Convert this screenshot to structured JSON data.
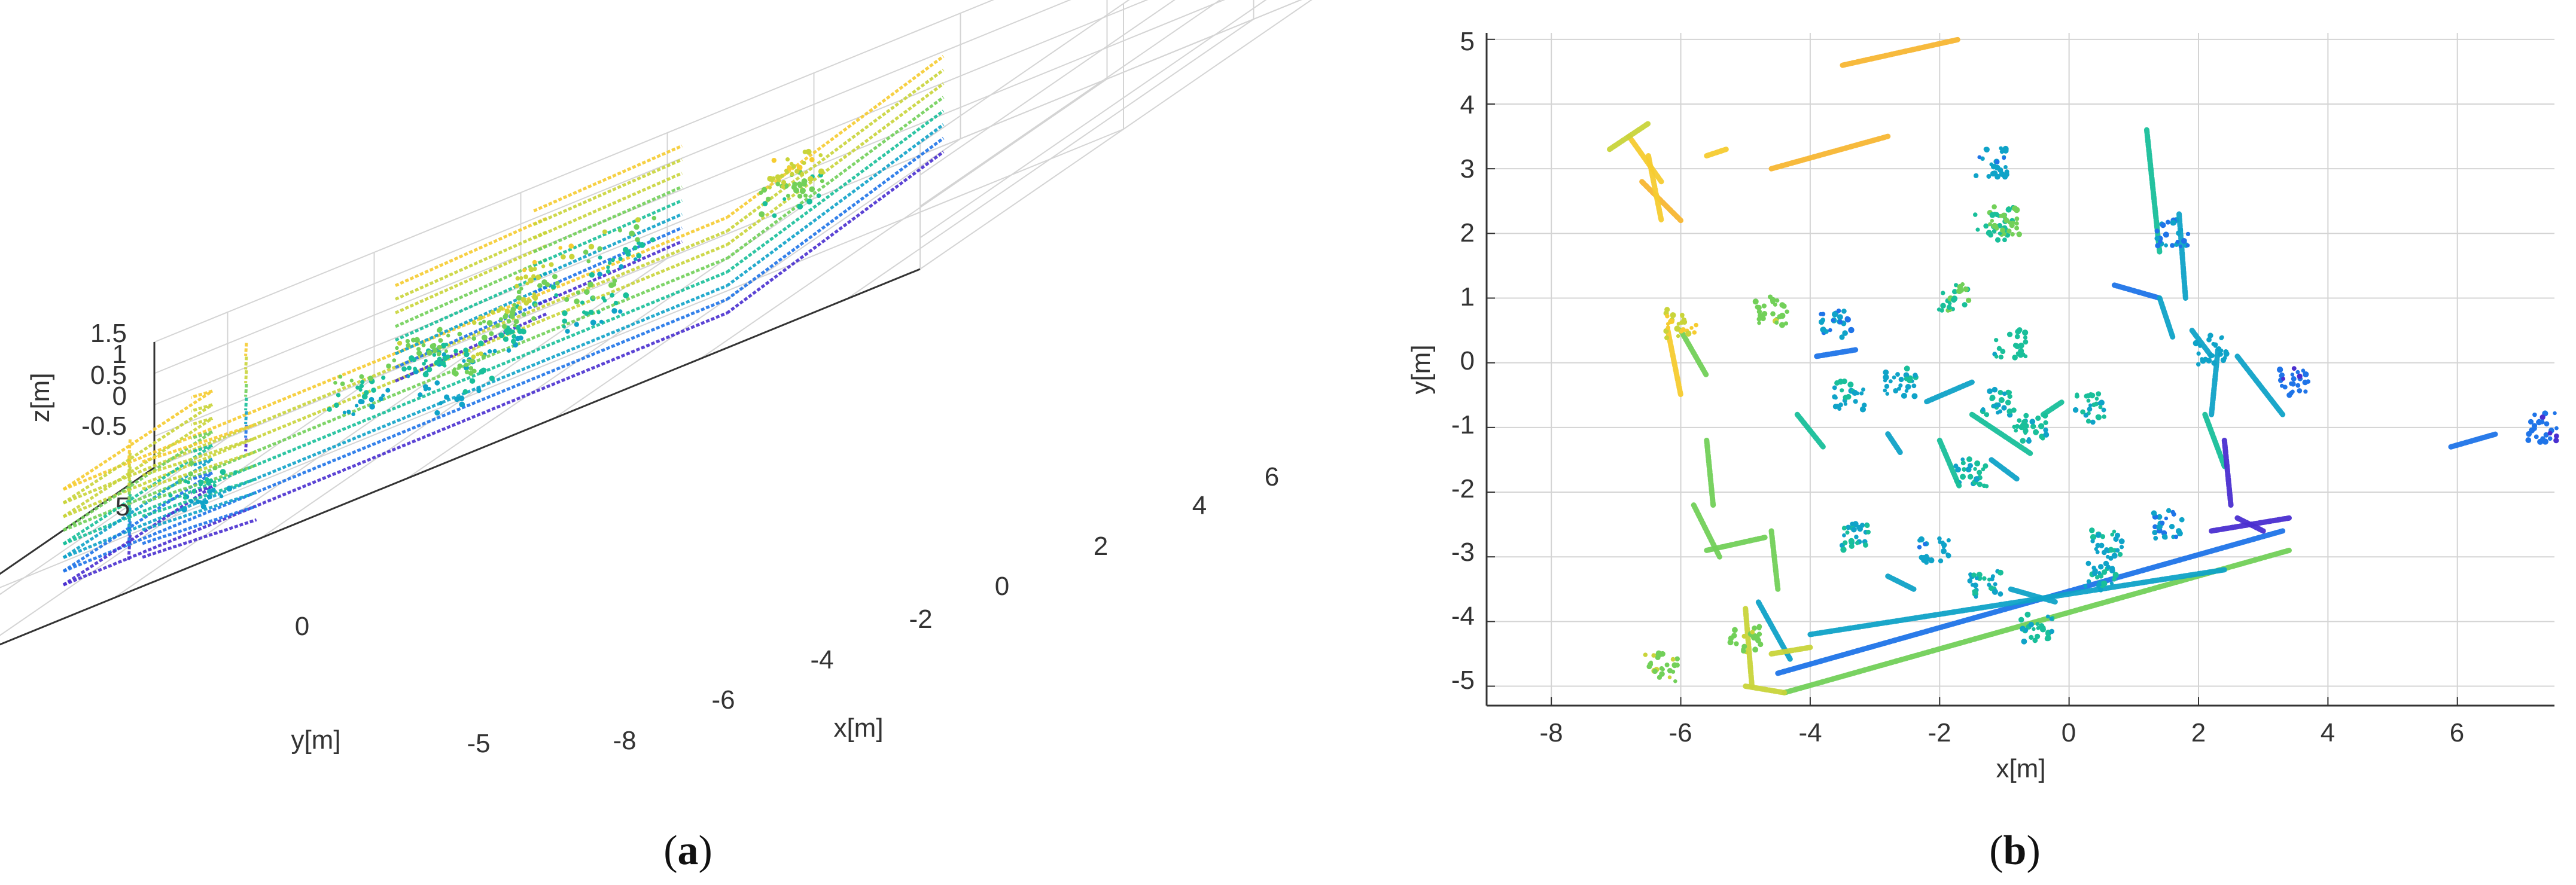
{
  "colors": {
    "grid": "#d4d4d4",
    "axis": "#333333",
    "colormap": [
      "#4a2fd0",
      "#1f74e8",
      "#0fa3c8",
      "#19bf9a",
      "#72d059",
      "#c9d43a",
      "#f6cc30",
      "#f7b733"
    ]
  },
  "chart_data": [
    {
      "type": "scatter",
      "panel_label": "(a)",
      "panel_letter": "a",
      "projection": "3d",
      "xlabel": "x[m]",
      "ylabel": "y[m]",
      "zlabel": "z[m]",
      "xlim": [
        -9,
        7
      ],
      "ylim": [
        -5,
        5
      ],
      "zlim": [
        -0.8,
        1.5
      ],
      "x_ticks": [
        "-8",
        "-6",
        "-4",
        "-2",
        "0",
        "2",
        "4",
        "6"
      ],
      "y_ticks": [
        "5",
        "0",
        "-5"
      ],
      "z_ticks": [
        "1.5",
        "1",
        "0.5",
        "0",
        "-0.5"
      ],
      "grid": true,
      "color_by": "z",
      "segments_3d": [
        [
          -5.8,
          -3.0,
          3.2,
          -2.9
        ],
        [
          -5.8,
          -3.0,
          -5.6,
          0.3
        ],
        [
          -5.6,
          0.3,
          -6.0,
          0.5
        ],
        [
          3.2,
          -2.9,
          2.6,
          3.5
        ],
        [
          -6.8,
          3.3,
          -6.2,
          2.2
        ],
        [
          -4.6,
          3.0,
          -2.8,
          3.5
        ],
        [
          -3.6,
          4.6,
          -1.8,
          5.0
        ],
        [
          -6.0,
          -1.0,
          -4.8,
          -3.2
        ],
        [
          -4.5,
          -3.4,
          -2.5,
          -4.2
        ]
      ],
      "clusters_3d": [
        [
          -1.0,
          2.0,
          0.4
        ],
        [
          -1.5,
          1.0,
          0.6
        ],
        [
          -2.6,
          0.2,
          0.3
        ],
        [
          -1.2,
          -0.6,
          0.3
        ],
        [
          -1.9,
          -0.8,
          0.2
        ],
        [
          -0.8,
          -1.0,
          0.4
        ],
        [
          0.5,
          -1.3,
          0.2
        ],
        [
          -3.2,
          -0.4,
          0.2
        ],
        [
          1.8,
          1.2,
          0.6
        ],
        [
          2.5,
          0.0,
          0.6
        ],
        [
          -4.0,
          -2.8,
          0.2
        ],
        [
          0.0,
          -3.6,
          0.3
        ]
      ]
    },
    {
      "type": "scatter",
      "panel_label": "(b)",
      "panel_letter": "b",
      "projection": "top view",
      "xlabel": "x[m]",
      "ylabel": "y[m]",
      "xlim": [
        -9,
        7.5
      ],
      "ylim": [
        -5.3,
        5.1
      ],
      "x_ticks": [
        "-8",
        "-6",
        "-4",
        "-2",
        "0",
        "2",
        "4",
        "6"
      ],
      "y_ticks": [
        "5",
        "4",
        "3",
        "2",
        "1",
        "0",
        "-1",
        "-2",
        "-3",
        "-4",
        "-5"
      ],
      "grid": true,
      "color_by": "z",
      "segments": [
        {
          "x": [
            -4.4,
            3.4
          ],
          "y": [
            -5.1,
            -2.9
          ],
          "z": 0.5
        },
        {
          "x": [
            -4.5,
            3.3
          ],
          "y": [
            -4.8,
            -2.6
          ],
          "z": -0.3
        },
        {
          "x": [
            -4.0,
            2.4
          ],
          "y": [
            -4.2,
            -3.2
          ],
          "z": -0.1
        },
        {
          "x": [
            2.2,
            3.4
          ],
          "y": [
            -2.6,
            -2.4
          ],
          "z": -0.6
        },
        {
          "x": [
            -6.2,
            -6.0
          ],
          "y": [
            0.5,
            -0.5
          ],
          "z": 1.0
        },
        {
          "x": [
            -6.0,
            -5.6
          ],
          "y": [
            0.5,
            -0.2
          ],
          "z": 0.5
        },
        {
          "x": [
            -5.6,
            -5.5
          ],
          "y": [
            -1.2,
            -2.2
          ],
          "z": 0.5
        },
        {
          "x": [
            -5.8,
            -5.4
          ],
          "y": [
            -2.2,
            -3.0
          ],
          "z": 0.6
        },
        {
          "x": [
            -5.6,
            -4.7
          ],
          "y": [
            -2.9,
            -2.7
          ],
          "z": 0.4
        },
        {
          "x": [
            -4.6,
            -4.5
          ],
          "y": [
            -2.6,
            -3.5
          ],
          "z": 0.6
        },
        {
          "x": [
            -5.0,
            -4.9
          ],
          "y": [
            -3.8,
            -5.0
          ],
          "z": 0.9
        },
        {
          "x": [
            -4.8,
            -4.3
          ],
          "y": [
            -3.7,
            -4.6
          ],
          "z": -0.1
        },
        {
          "x": [
            -4.6,
            -4.0
          ],
          "y": [
            -4.5,
            -4.4
          ],
          "z": 0.8
        },
        {
          "x": [
            -5.0,
            -4.4
          ],
          "y": [
            -5.0,
            -5.1
          ],
          "z": 0.9
        },
        {
          "x": [
            1.2,
            1.4
          ],
          "y": [
            3.6,
            1.7
          ],
          "z": 0.3
        },
        {
          "x": [
            1.7,
            1.8
          ],
          "y": [
            2.3,
            1.0
          ],
          "z": -0.1
        },
        {
          "x": [
            1.9,
            2.2
          ],
          "y": [
            0.5,
            0.1
          ],
          "z": 0.0
        },
        {
          "x": [
            2.3,
            2.2
          ],
          "y": [
            0.2,
            -0.8
          ],
          "z": -0.1
        },
        {
          "x": [
            2.1,
            2.4
          ],
          "y": [
            -0.8,
            -1.6
          ],
          "z": 0.1
        },
        {
          "x": [
            0.7,
            1.4
          ],
          "y": [
            1.2,
            1.0
          ],
          "z": -0.4
        },
        {
          "x": [
            1.4,
            1.6
          ],
          "y": [
            1.0,
            0.4
          ],
          "z": -0.2
        },
        {
          "x": [
            2.4,
            2.5
          ],
          "y": [
            -1.2,
            -2.2
          ],
          "z": -0.6
        },
        {
          "x": [
            2.6,
            3.0
          ],
          "y": [
            -2.4,
            -2.6
          ],
          "z": -0.6
        },
        {
          "x": [
            2.6,
            3.3
          ],
          "y": [
            0.1,
            -0.8
          ],
          "z": -0.2
        },
        {
          "x": [
            -6.8,
            -6.3
          ],
          "y": [
            3.5,
            2.8
          ],
          "z": 1.2
        },
        {
          "x": [
            -6.6,
            -6.0
          ],
          "y": [
            2.8,
            2.2
          ],
          "z": 1.3
        },
        {
          "x": [
            -6.5,
            -6.3
          ],
          "y": [
            3.2,
            2.2
          ],
          "z": 1.1
        },
        {
          "x": [
            -7.1,
            -6.5
          ],
          "y": [
            3.3,
            3.7
          ],
          "z": 0.8
        },
        {
          "x": [
            -4.6,
            -2.8
          ],
          "y": [
            3.0,
            3.5
          ],
          "z": 1.3
        },
        {
          "x": [
            -3.5,
            -1.7
          ],
          "y": [
            4.6,
            5.0
          ],
          "z": 1.4
        },
        {
          "x": [
            -5.6,
            -5.3
          ],
          "y": [
            3.2,
            3.3
          ],
          "z": 1.0
        },
        {
          "x": [
            -2.2,
            -1.5
          ],
          "y": [
            -0.6,
            -0.3
          ],
          "z": 0.0
        },
        {
          "x": [
            -1.5,
            -0.6
          ],
          "y": [
            -0.8,
            -1.4
          ],
          "z": 0.1
        },
        {
          "x": [
            -2.0,
            -1.7
          ],
          "y": [
            -1.2,
            -1.9
          ],
          "z": 0.1
        },
        {
          "x": [
            -0.4,
            -0.1
          ],
          "y": [
            -0.8,
            -0.6
          ],
          "z": 0.1
        },
        {
          "x": [
            -1.2,
            -0.8
          ],
          "y": [
            -1.5,
            -1.8
          ],
          "z": 0.0
        },
        {
          "x": [
            -0.9,
            -0.2
          ],
          "y": [
            -3.5,
            -3.7
          ],
          "z": 0.0
        },
        {
          "x": [
            -2.8,
            -2.4
          ],
          "y": [
            -3.3,
            -3.5
          ],
          "z": 0.0
        },
        {
          "x": [
            -3.9,
            -3.3
          ],
          "y": [
            0.1,
            0.2
          ],
          "z": -0.3
        },
        {
          "x": [
            5.9,
            6.6
          ],
          "y": [
            -1.3,
            -1.1
          ],
          "z": -0.4
        },
        {
          "x": [
            -2.8,
            -2.6
          ],
          "y": [
            -1.1,
            -1.4
          ],
          "z": 0.0
        },
        {
          "x": [
            -4.2,
            -3.8
          ],
          "y": [
            -0.8,
            -1.3
          ],
          "z": 0.2
        }
      ],
      "clusters": [
        {
          "x": -1.2,
          "y": 2.1,
          "z": 0.3
        },
        {
          "x": -1.0,
          "y": 2.2,
          "z": 0.4
        },
        {
          "x": -1.8,
          "y": 1.0,
          "z": 0.3
        },
        {
          "x": -0.9,
          "y": 0.3,
          "z": 0.2
        },
        {
          "x": -1.1,
          "y": -0.6,
          "z": 0.1
        },
        {
          "x": -3.6,
          "y": 0.6,
          "z": -0.2
        },
        {
          "x": -4.6,
          "y": 0.8,
          "z": 0.5
        },
        {
          "x": -3.4,
          "y": -0.5,
          "z": 0.0
        },
        {
          "x": -2.6,
          "y": -0.3,
          "z": 0.0
        },
        {
          "x": -1.5,
          "y": -1.7,
          "z": 0.1
        },
        {
          "x": -0.6,
          "y": -1.0,
          "z": 0.1
        },
        {
          "x": 0.3,
          "y": -0.7,
          "z": 0.1
        },
        {
          "x": 0.6,
          "y": -2.8,
          "z": 0.0
        },
        {
          "x": -1.3,
          "y": -3.4,
          "z": 0.0
        },
        {
          "x": -2.1,
          "y": -2.9,
          "z": -0.1
        },
        {
          "x": -3.3,
          "y": -2.7,
          "z": 0.0
        },
        {
          "x": -0.5,
          "y": -4.1,
          "z": 0.1
        },
        {
          "x": 0.5,
          "y": -3.3,
          "z": 0.0
        },
        {
          "x": 1.5,
          "y": -2.5,
          "z": -0.2
        },
        {
          "x": 1.6,
          "y": 2.0,
          "z": -0.2
        },
        {
          "x": 2.2,
          "y": 0.2,
          "z": -0.1
        },
        {
          "x": -6.0,
          "y": 0.6,
          "z": 0.9
        },
        {
          "x": -5.0,
          "y": -4.3,
          "z": 0.5
        },
        {
          "x": -6.3,
          "y": -4.7,
          "z": 0.6
        },
        {
          "x": 3.5,
          "y": -0.3,
          "z": -0.4
        },
        {
          "x": -1.2,
          "y": 3.1,
          "z": -0.1
        },
        {
          "x": 7.3,
          "y": -1.0,
          "z": -0.4
        }
      ]
    }
  ]
}
